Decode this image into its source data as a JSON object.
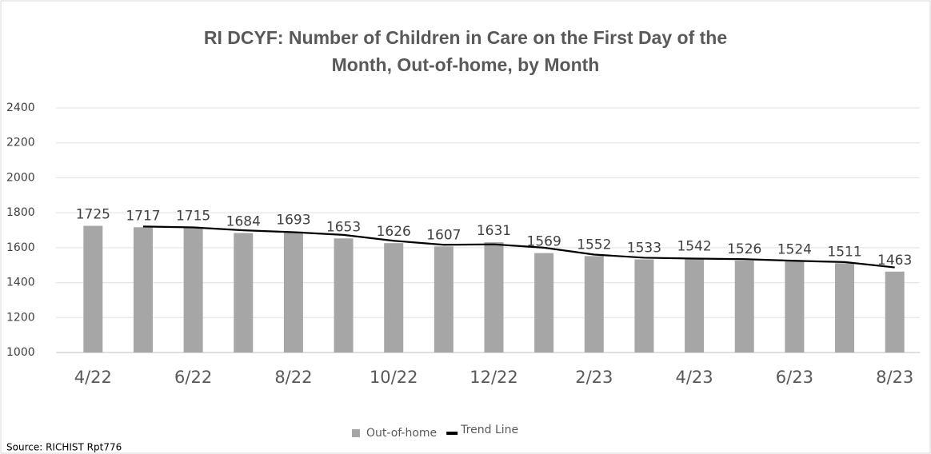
{
  "chart_data": {
    "type": "bar",
    "title": "RI DCYF: Number of Children in Care on the First Day of the Month, Out-of-home, by Month",
    "categories": [
      "4/22",
      null,
      "6/22",
      null,
      "8/22",
      null,
      "10/22",
      null,
      "12/22",
      null,
      "2/23",
      null,
      "4/23",
      null,
      "6/23",
      null,
      "8/23"
    ],
    "series": [
      {
        "name": "Out-of-home",
        "color": "#a6a6a6",
        "type": "bar",
        "values": [
          1725,
          1717,
          1715,
          1684,
          1693,
          1653,
          1626,
          1607,
          1631,
          1569,
          1552,
          1533,
          1542,
          1526,
          1524,
          1511,
          1463
        ]
      },
      {
        "name": "Trend Line",
        "color": "#000000",
        "type": "line",
        "values": [
          null,
          1721,
          1716,
          1699.5,
          1688.5,
          1673,
          1639.5,
          1616.5,
          1619,
          1600,
          1560.5,
          1542.5,
          1537.5,
          1534,
          1525,
          1517.5,
          1487
        ]
      }
    ],
    "ylim": [
      1000,
      2400
    ],
    "yticks": [
      1000,
      1200,
      1400,
      1600,
      1800,
      2000,
      2200,
      2400
    ],
    "grid": true,
    "legend": "bottom",
    "source": "Source: RICHIST Rpt776"
  }
}
